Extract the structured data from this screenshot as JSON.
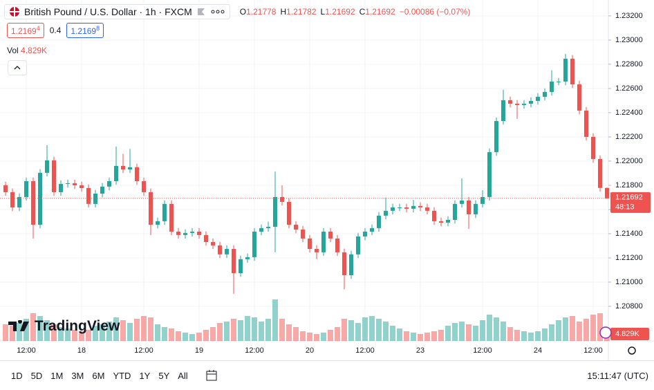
{
  "chart_data": {
    "type": "candlestick",
    "title": "British Pound / U.S. Dollar · 1h · FXCM",
    "legend": [
      {
        "key": "O",
        "value": "1.21778"
      },
      {
        "key": "H",
        "value": "1.21782"
      },
      {
        "key": "L",
        "value": "1.21692"
      },
      {
        "key": "C",
        "value": "1.21692"
      }
    ],
    "change": "−0.00086 (−0.07%)",
    "volume_label": "Vol",
    "volume_value": "4.829K",
    "countdown": "48:13",
    "up_color": "#26a69a",
    "down_color": "#ef5350",
    "ylim": [
      1.20514,
      1.23331
    ],
    "yticks": [
      {
        "value": 1.232,
        "label": "1.23200"
      },
      {
        "value": 1.23,
        "label": "1.23000"
      },
      {
        "value": 1.228,
        "label": "1.22800"
      },
      {
        "value": 1.226,
        "label": "1.22600"
      },
      {
        "value": 1.224,
        "label": "1.22400"
      },
      {
        "value": 1.222,
        "label": "1.22200"
      },
      {
        "value": 1.22,
        "label": "1.22000"
      },
      {
        "value": 1.218,
        "label": "1.21800"
      },
      {
        "value": 1.216,
        "label": "1.21600"
      },
      {
        "value": 1.214,
        "label": "1.21400"
      },
      {
        "value": 1.212,
        "label": "1.21200"
      },
      {
        "value": 1.21,
        "label": "1.21000"
      },
      {
        "value": 1.208,
        "label": "1.20800"
      }
    ],
    "categories": [
      null,
      null,
      null,
      "12:00",
      null,
      null,
      null,
      null,
      null,
      null,
      null,
      "18",
      null,
      null,
      null,
      null,
      null,
      null,
      null,
      null,
      "12:00",
      null,
      null,
      null,
      null,
      null,
      null,
      null,
      "19",
      null,
      null,
      null,
      null,
      null,
      null,
      null,
      "12:00",
      null,
      null,
      null,
      null,
      null,
      null,
      null,
      "20",
      null,
      null,
      null,
      null,
      null,
      null,
      null,
      "12:00",
      null,
      null,
      null,
      null,
      null,
      null,
      null,
      "23",
      null,
      null,
      null,
      null,
      null,
      null,
      null,
      null,
      "12:00",
      null,
      null,
      null,
      null,
      null,
      null,
      null,
      "24",
      null,
      null,
      null,
      null,
      null,
      null,
      null,
      "12:00",
      null,
      null
    ],
    "open": [
      1.218,
      1.21743,
      1.21617,
      1.21703,
      1.21834,
      1.21474,
      1.21903,
      1.22006,
      1.21743,
      1.21811,
      1.21817,
      1.218,
      1.21777,
      1.21646,
      1.21731,
      1.21789,
      1.21834,
      1.2196,
      1.21931,
      1.21949,
      1.21834,
      1.21743,
      1.21474,
      1.21503,
      1.21646,
      1.21417,
      1.21389,
      1.21406,
      1.21417,
      1.21389,
      1.21331,
      1.21303,
      1.21229,
      1.21274,
      1.21074,
      1.21189,
      1.21206,
      1.21417,
      1.21446,
      1.21457,
      1.21703,
      1.21663,
      1.21474,
      1.21434,
      1.2136,
      1.21274,
      1.21246,
      1.21417,
      1.2136,
      1.21246,
      1.21057,
      1.21229,
      1.21377,
      1.21417,
      1.21446,
      1.21549,
      1.21589,
      1.21617,
      1.21617,
      1.21606,
      1.21629,
      1.21617,
      1.21589,
      1.21503,
      1.21491,
      1.21514,
      1.21646,
      1.21674,
      1.2156,
      1.21646,
      1.21703,
      1.22074,
      1.22331,
      1.22503,
      1.22474,
      1.22463,
      1.22474,
      1.22497,
      1.22531,
      1.22571,
      1.22657,
      1.22657,
      1.22846,
      1.22634,
      1.22417,
      1.222,
      1.22017,
      1.21778
    ],
    "high": [
      1.2183,
      1.21773,
      1.21733,
      1.21864,
      1.21864,
      1.21933,
      1.22131,
      1.22036,
      1.21841,
      1.21847,
      1.21847,
      1.2183,
      1.21807,
      1.21761,
      1.21819,
      1.21864,
      1.2212,
      1.2206,
      1.221,
      1.21979,
      1.21864,
      1.21773,
      1.21533,
      1.21676,
      1.21676,
      1.21447,
      1.21436,
      1.21447,
      1.21447,
      1.21419,
      1.21361,
      1.21333,
      1.21304,
      1.21304,
      1.21219,
      1.21236,
      1.21447,
      1.21476,
      1.215,
      1.21914,
      1.218,
      1.21693,
      1.21504,
      1.21464,
      1.2139,
      1.21304,
      1.21447,
      1.21447,
      1.2139,
      1.21276,
      1.21259,
      1.21407,
      1.21447,
      1.21476,
      1.21579,
      1.217,
      1.21647,
      1.21647,
      1.21647,
      1.2168,
      1.21659,
      1.21647,
      1.21619,
      1.21533,
      1.21544,
      1.21676,
      1.21857,
      1.21704,
      1.21676,
      1.2176,
      1.22104,
      1.22361,
      1.2259,
      1.22533,
      1.22504,
      1.22504,
      1.22527,
      1.22561,
      1.22601,
      1.2275,
      1.22687,
      1.22886,
      1.22876,
      1.22664,
      1.22447,
      1.2223,
      1.22047,
      1.21782
    ],
    "low": [
      1.21713,
      1.21587,
      1.21587,
      1.21673,
      1.2136,
      1.21444,
      1.21873,
      1.21713,
      1.21713,
      1.21781,
      1.2177,
      1.21747,
      1.21616,
      1.21616,
      1.21701,
      1.21759,
      1.21804,
      1.21901,
      1.21901,
      1.21804,
      1.21713,
      1.21389,
      1.21444,
      1.21473,
      1.21387,
      1.21359,
      1.21359,
      1.21376,
      1.21359,
      1.21301,
      1.21273,
      1.21199,
      1.21199,
      1.20903,
      1.21044,
      1.21159,
      1.21176,
      1.21387,
      1.21416,
      1.21246,
      1.21633,
      1.21444,
      1.21404,
      1.2133,
      1.21244,
      1.2119,
      1.21216,
      1.2133,
      1.21216,
      1.2094,
      1.21027,
      1.21199,
      1.21347,
      1.21387,
      1.21416,
      1.21519,
      1.21559,
      1.21587,
      1.21576,
      1.21576,
      1.21587,
      1.21559,
      1.21473,
      1.21461,
      1.21461,
      1.21484,
      1.21616,
      1.2144,
      1.2153,
      1.21616,
      1.21673,
      1.22044,
      1.22301,
      1.22444,
      1.22349,
      1.22433,
      1.22444,
      1.22467,
      1.22501,
      1.22541,
      1.22627,
      1.22627,
      1.22604,
      1.22387,
      1.2217,
      1.21987,
      1.21748,
      1.21692
    ],
    "close": [
      1.21743,
      1.21617,
      1.21703,
      1.21834,
      1.21474,
      1.21903,
      1.22006,
      1.21743,
      1.21811,
      1.21817,
      1.218,
      1.21777,
      1.21646,
      1.21731,
      1.21789,
      1.21834,
      1.2196,
      1.21931,
      1.21949,
      1.21834,
      1.21743,
      1.21474,
      1.21503,
      1.21646,
      1.21417,
      1.21389,
      1.21406,
      1.21417,
      1.21389,
      1.21331,
      1.21303,
      1.21229,
      1.21274,
      1.21074,
      1.21189,
      1.21206,
      1.21417,
      1.21446,
      1.21457,
      1.21703,
      1.21663,
      1.21474,
      1.21434,
      1.2136,
      1.21274,
      1.21246,
      1.21417,
      1.2136,
      1.21246,
      1.21057,
      1.21229,
      1.21377,
      1.21417,
      1.21446,
      1.21549,
      1.21589,
      1.21617,
      1.21617,
      1.21606,
      1.21629,
      1.21617,
      1.21589,
      1.21503,
      1.21491,
      1.21514,
      1.21646,
      1.21674,
      1.2156,
      1.21646,
      1.21703,
      1.22074,
      1.22331,
      1.22503,
      1.22474,
      1.22463,
      1.22474,
      1.22497,
      1.22531,
      1.22571,
      1.22657,
      1.22657,
      1.22846,
      1.22634,
      1.22417,
      1.222,
      1.22017,
      1.21778,
      1.21692
    ],
    "volume": [
      6000,
      5500,
      6500,
      8000,
      10000,
      9000,
      7500,
      6000,
      5000,
      4500,
      4000,
      3500,
      4000,
      5500,
      6000,
      7000,
      8500,
      7500,
      6500,
      8000,
      9000,
      8500,
      6000,
      5000,
      4500,
      3500,
      3000,
      2500,
      3000,
      4000,
      5000,
      6500,
      7000,
      8000,
      7500,
      9000,
      8500,
      7000,
      8000,
      15000,
      8000,
      6000,
      5000,
      3500,
      3000,
      2500,
      3000,
      4000,
      5000,
      8000,
      7500,
      6500,
      8500,
      9000,
      8000,
      7000,
      5500,
      4500,
      3500,
      3000,
      2500,
      3000,
      3500,
      4000,
      5500,
      6500,
      7000,
      6000,
      5500,
      7500,
      9500,
      8500,
      7000,
      5000,
      4000,
      3500,
      3000,
      3500,
      4500,
      6000,
      7500,
      8500,
      9000,
      7000,
      8000,
      9500,
      10000,
      4829
    ]
  },
  "quote": {
    "bid_main": "1.2169",
    "bid_pip": "4",
    "spread": "0.4",
    "ask_main": "1.2169",
    "ask_pip": "8"
  },
  "brand": "TradingView",
  "toolbar": {
    "ranges": [
      "1D",
      "5D",
      "1M",
      "3M",
      "6M",
      "YTD",
      "1Y",
      "5Y",
      "All"
    ],
    "time": "15:11:47 (UTC)"
  }
}
